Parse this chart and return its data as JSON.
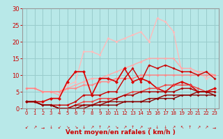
{
  "background_color": "#b8e8e8",
  "grid_color": "#99cccc",
  "xlim": [
    -0.5,
    23.5
  ],
  "ylim": [
    0,
    30
  ],
  "yticks": [
    0,
    5,
    10,
    15,
    20,
    25,
    30
  ],
  "xticks": [
    0,
    1,
    2,
    3,
    4,
    5,
    6,
    7,
    8,
    9,
    10,
    11,
    12,
    13,
    14,
    15,
    16,
    17,
    18,
    19,
    20,
    21,
    22,
    23
  ],
  "xlabel": "Vent moyen/en rafales ( km/h )",
  "xlabel_color": "#cc0000",
  "tick_color": "#cc0000",
  "axis_color": "#999999",
  "series": [
    {
      "comment": "light pink / top rafales line - broad smooth arc",
      "x": [
        0,
        1,
        2,
        3,
        4,
        5,
        6,
        7,
        8,
        9,
        10,
        11,
        12,
        13,
        14,
        15,
        16,
        17,
        18,
        19,
        20,
        21,
        22,
        23
      ],
      "y": [
        6,
        6,
        5,
        5,
        5,
        7,
        8,
        17,
        17,
        16,
        21,
        20,
        21,
        22,
        23,
        20,
        27,
        26,
        23,
        11,
        11,
        11,
        9,
        10
      ],
      "color": "#ffbbbb",
      "lw": 1.0,
      "marker": "D",
      "ms": 2.0
    },
    {
      "comment": "medium pink broad arc second",
      "x": [
        0,
        1,
        2,
        3,
        4,
        5,
        6,
        7,
        8,
        9,
        10,
        11,
        12,
        13,
        14,
        15,
        16,
        17,
        18,
        19,
        20,
        21,
        22,
        23
      ],
      "y": [
        6,
        6,
        5,
        5,
        4,
        6,
        7,
        8,
        9,
        9,
        10,
        11,
        12,
        13,
        14,
        15,
        15,
        15,
        15,
        12,
        12,
        11,
        11,
        10
      ],
      "color": "#ffaaaa",
      "lw": 1.0,
      "marker": "D",
      "ms": 2.0
    },
    {
      "comment": "salmon diagonal trend line upper",
      "x": [
        0,
        1,
        2,
        3,
        4,
        5,
        6,
        7,
        8,
        9,
        10,
        11,
        12,
        13,
        14,
        15,
        16,
        17,
        18,
        19,
        20,
        21,
        22,
        23
      ],
      "y": [
        6,
        6,
        5,
        5,
        5,
        6,
        6,
        7,
        7,
        8,
        8,
        9,
        9,
        9,
        10,
        10,
        10,
        10,
        10,
        10,
        10,
        10,
        10,
        10
      ],
      "color": "#ff8888",
      "lw": 1.1,
      "marker": "D",
      "ms": 2.0
    },
    {
      "comment": "dark red jagged middle series",
      "x": [
        0,
        1,
        2,
        3,
        4,
        5,
        6,
        7,
        8,
        9,
        10,
        11,
        12,
        13,
        14,
        15,
        16,
        17,
        18,
        19,
        20,
        21,
        22,
        23
      ],
      "y": [
        2,
        2,
        2,
        3,
        3,
        8,
        11,
        11,
        4,
        9,
        9,
        8,
        12,
        8,
        9,
        8,
        6,
        5,
        7,
        8,
        7,
        5,
        5,
        6
      ],
      "color": "#dd0000",
      "lw": 1.2,
      "marker": "D",
      "ms": 2.5
    },
    {
      "comment": "medium red series with peaks",
      "x": [
        0,
        1,
        2,
        3,
        4,
        5,
        6,
        7,
        8,
        9,
        10,
        11,
        12,
        13,
        14,
        15,
        16,
        17,
        18,
        19,
        20,
        21,
        22,
        23
      ],
      "y": [
        2,
        2,
        1,
        1,
        1,
        1,
        2,
        4,
        4,
        4,
        5,
        5,
        9,
        12,
        8,
        13,
        12,
        13,
        12,
        11,
        11,
        10,
        11,
        9
      ],
      "color": "#cc0000",
      "lw": 1.0,
      "marker": "D",
      "ms": 2.0
    },
    {
      "comment": "lower dark red gradual rise",
      "x": [
        0,
        1,
        2,
        3,
        4,
        5,
        6,
        7,
        8,
        9,
        10,
        11,
        12,
        13,
        14,
        15,
        16,
        17,
        18,
        19,
        20,
        21,
        22,
        23
      ],
      "y": [
        2,
        2,
        1,
        1,
        0,
        0,
        1,
        2,
        2,
        3,
        3,
        3,
        4,
        5,
        5,
        6,
        6,
        7,
        7,
        7,
        7,
        6,
        5,
        5
      ],
      "color": "#ee4444",
      "lw": 1.0,
      "marker": "D",
      "ms": 2.0
    },
    {
      "comment": "darkest red near bottom",
      "x": [
        0,
        1,
        2,
        3,
        4,
        5,
        6,
        7,
        8,
        9,
        10,
        11,
        12,
        13,
        14,
        15,
        16,
        17,
        18,
        19,
        20,
        21,
        22,
        23
      ],
      "y": [
        2,
        2,
        1,
        1,
        0,
        0,
        1,
        1,
        1,
        2,
        2,
        3,
        4,
        4,
        5,
        5,
        5,
        5,
        5,
        6,
        6,
        5,
        5,
        5
      ],
      "color": "#aa0000",
      "lw": 1.0,
      "marker": "D",
      "ms": 2.0
    },
    {
      "comment": "near bottom line 1",
      "x": [
        0,
        1,
        2,
        3,
        4,
        5,
        6,
        7,
        8,
        9,
        10,
        11,
        12,
        13,
        14,
        15,
        16,
        17,
        18,
        19,
        20,
        21,
        22,
        23
      ],
      "y": [
        2,
        2,
        1,
        1,
        0,
        0,
        0,
        1,
        1,
        1,
        2,
        2,
        2,
        2,
        2,
        3,
        3,
        4,
        4,
        4,
        4,
        5,
        5,
        4
      ],
      "color": "#990000",
      "lw": 1.0,
      "marker": "D",
      "ms": 1.8
    },
    {
      "comment": "lowest line",
      "x": [
        0,
        1,
        2,
        3,
        4,
        5,
        6,
        7,
        8,
        9,
        10,
        11,
        12,
        13,
        14,
        15,
        16,
        17,
        18,
        19,
        20,
        21,
        22,
        23
      ],
      "y": [
        2,
        2,
        1,
        1,
        0,
        0,
        0,
        0,
        1,
        1,
        1,
        1,
        2,
        2,
        2,
        2,
        3,
        3,
        3,
        4,
        4,
        4,
        4,
        4
      ],
      "color": "#880000",
      "lw": 1.0,
      "marker": "D",
      "ms": 1.8
    }
  ],
  "wind_arrows": [
    "↙",
    "↗",
    "→",
    "↓",
    "↙",
    "↘",
    "↘",
    "↓",
    "↗",
    "↑",
    "↗",
    "↘",
    "↗",
    "↑",
    "↗",
    "→",
    "↓",
    "↓",
    "↗",
    "↖",
    "↑",
    "↗",
    "↗",
    "→"
  ],
  "wind_arrow_color": "#cc0000"
}
